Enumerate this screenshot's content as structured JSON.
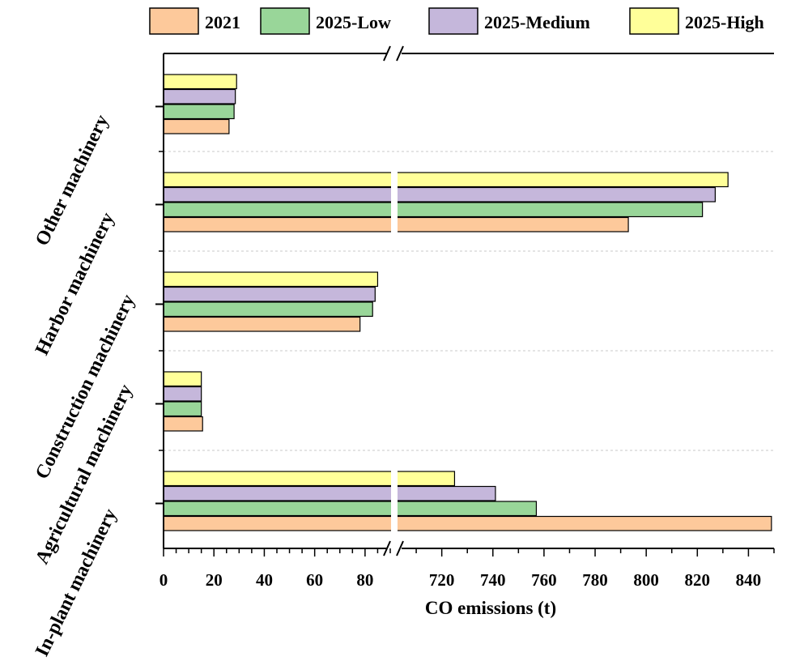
{
  "chart_data": {
    "type": "bar",
    "orientation": "horizontal",
    "xlabel": "CO emissions (t)",
    "ylabel": "",
    "categories": [
      "In-plant machinery",
      "Agricultural machinery",
      "Construction machinery",
      "Harbor machinery",
      "Other machinery"
    ],
    "series": [
      {
        "name": "2021",
        "color": "#fdc99b",
        "values": [
          849,
          15.5,
          78,
          793,
          26
        ]
      },
      {
        "name": "2025-Low",
        "color": "#99d699",
        "values": [
          757,
          15,
          83,
          822,
          28
        ]
      },
      {
        "name": "2025-Medium",
        "color": "#c5b7db",
        "values": [
          741,
          15,
          84,
          827,
          28.5
        ]
      },
      {
        "name": "2025-High",
        "color": "#ffff99",
        "values": [
          725,
          15,
          85,
          832,
          29
        ]
      }
    ],
    "x_axis_break": {
      "lower_segment": [
        0,
        90
      ],
      "upper_segment": [
        703,
        850
      ]
    },
    "x_ticks_lower": [
      "0",
      "20",
      "40",
      "60",
      "80"
    ],
    "x_ticks_upper": [
      "720",
      "740",
      "760",
      "780",
      "800",
      "820",
      "840"
    ],
    "legend_position": "top",
    "grid": "horizontal dashed separators between categories"
  }
}
